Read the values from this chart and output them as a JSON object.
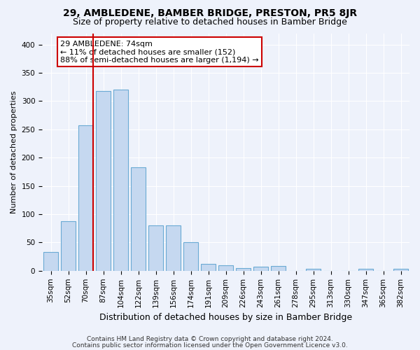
{
  "title": "29, AMBLEDENE, BAMBER BRIDGE, PRESTON, PR5 8JR",
  "subtitle": "Size of property relative to detached houses in Bamber Bridge",
  "xlabel": "Distribution of detached houses by size in Bamber Bridge",
  "ylabel": "Number of detached properties",
  "categories": [
    "35sqm",
    "52sqm",
    "70sqm",
    "87sqm",
    "104sqm",
    "122sqm",
    "139sqm",
    "156sqm",
    "174sqm",
    "191sqm",
    "209sqm",
    "226sqm",
    "243sqm",
    "261sqm",
    "278sqm",
    "295sqm",
    "313sqm",
    "330sqm",
    "347sqm",
    "365sqm",
    "382sqm"
  ],
  "values": [
    33,
    88,
    257,
    318,
    320,
    183,
    80,
    80,
    50,
    12,
    10,
    5,
    7,
    9,
    0,
    4,
    0,
    0,
    3,
    0,
    4
  ],
  "bar_color": "#c5d8f0",
  "bar_edge_color": "#6aaad4",
  "vline_color": "#cc0000",
  "vline_bin": 2,
  "annotation_line1": "29 AMBLEDENE: 74sqm",
  "annotation_line2": "← 11% of detached houses are smaller (152)",
  "annotation_line3": "88% of semi-detached houses are larger (1,194) →",
  "annotation_box_facecolor": "white",
  "annotation_box_edgecolor": "#cc0000",
  "footer_line1": "Contains HM Land Registry data © Crown copyright and database right 2024.",
  "footer_line2": "Contains public sector information licensed under the Open Government Licence v3.0.",
  "ylim": [
    0,
    420
  ],
  "background_color": "#eef2fb",
  "grid_color": "white",
  "title_fontsize": 10,
  "subtitle_fontsize": 9,
  "ylabel_fontsize": 8,
  "xlabel_fontsize": 9,
  "tick_fontsize": 7.5,
  "annotation_fontsize": 8,
  "footer_fontsize": 6.5
}
